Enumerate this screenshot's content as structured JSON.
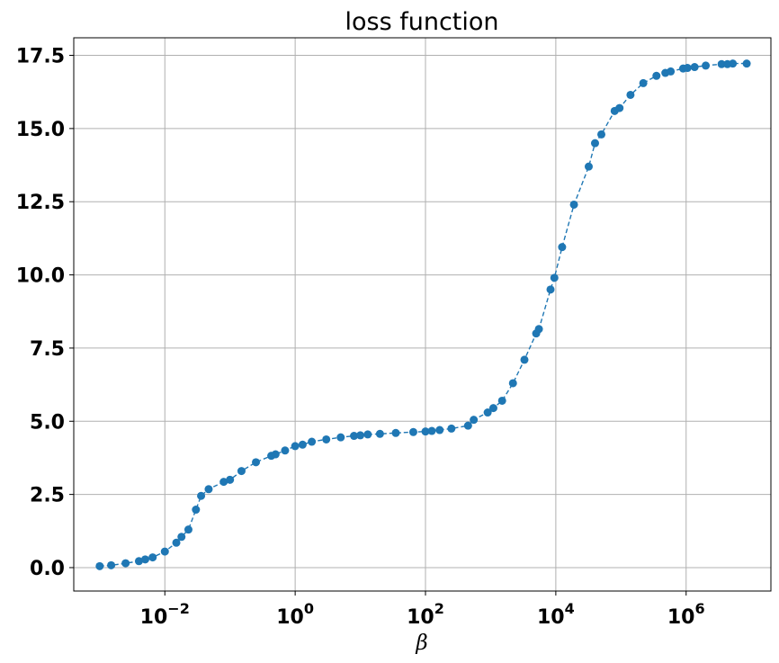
{
  "chart_data": {
    "type": "line",
    "title": "loss function",
    "xlabel": "β",
    "ylabel": "",
    "x_scale": "log",
    "xlim": [
      0.0004,
      20000000
    ],
    "ylim": [
      -0.8,
      18.1
    ],
    "grid": true,
    "line_style": "dashed with circle markers",
    "color": "#1f77b4",
    "x_ticks": [
      {
        "base": "10",
        "exp": "−2",
        "value": 0.01
      },
      {
        "base": "10",
        "exp": "0",
        "value": 1
      },
      {
        "base": "10",
        "exp": "2",
        "value": 100
      },
      {
        "base": "10",
        "exp": "4",
        "value": 10000
      },
      {
        "base": "10",
        "exp": "6",
        "value": 1000000
      }
    ],
    "y_ticks": [
      {
        "label": "0.0",
        "value": 0
      },
      {
        "label": "2.5",
        "value": 2.5
      },
      {
        "label": "5.0",
        "value": 5
      },
      {
        "label": "7.5",
        "value": 7.5
      },
      {
        "label": "10.0",
        "value": 10
      },
      {
        "label": "12.5",
        "value": 12.5
      },
      {
        "label": "15.0",
        "value": 15
      },
      {
        "label": "17.5",
        "value": 17.5
      }
    ],
    "series": [
      {
        "x": [
          0.001,
          0.0015,
          0.0025,
          0.004,
          0.005,
          0.0065,
          0.01,
          0.015,
          0.018,
          0.023,
          0.03,
          0.036,
          0.047,
          0.08,
          0.1,
          0.15,
          0.25,
          0.43,
          0.5,
          0.7,
          1,
          1.3,
          1.8,
          3,
          5,
          8,
          10,
          13,
          20,
          35,
          65,
          100,
          125,
          165,
          250,
          450,
          550,
          900,
          1100,
          1500,
          2200,
          3300,
          5000,
          5500,
          8300,
          9500,
          12500,
          19000,
          32000,
          40000,
          50000,
          80000,
          95000,
          140000,
          220000,
          350000,
          480000,
          580000,
          900000,
          1050000,
          1350000,
          2000000,
          3500000,
          4300000,
          5200000,
          8500000
        ],
        "y": [
          0.05,
          0.08,
          0.15,
          0.22,
          0.28,
          0.35,
          0.55,
          0.85,
          1.05,
          1.3,
          1.98,
          2.45,
          2.68,
          2.93,
          3.0,
          3.3,
          3.6,
          3.82,
          3.87,
          4.0,
          4.15,
          4.2,
          4.3,
          4.38,
          4.45,
          4.5,
          4.52,
          4.55,
          4.57,
          4.6,
          4.63,
          4.65,
          4.67,
          4.7,
          4.75,
          4.85,
          5.05,
          5.3,
          5.45,
          5.7,
          6.3,
          7.1,
          8.0,
          8.15,
          9.5,
          9.9,
          10.95,
          12.4,
          13.7,
          14.5,
          14.8,
          15.6,
          15.7,
          16.15,
          16.55,
          16.8,
          16.9,
          16.95,
          17.05,
          17.07,
          17.1,
          17.15,
          17.2,
          17.2,
          17.22,
          17.22
        ]
      }
    ]
  }
}
